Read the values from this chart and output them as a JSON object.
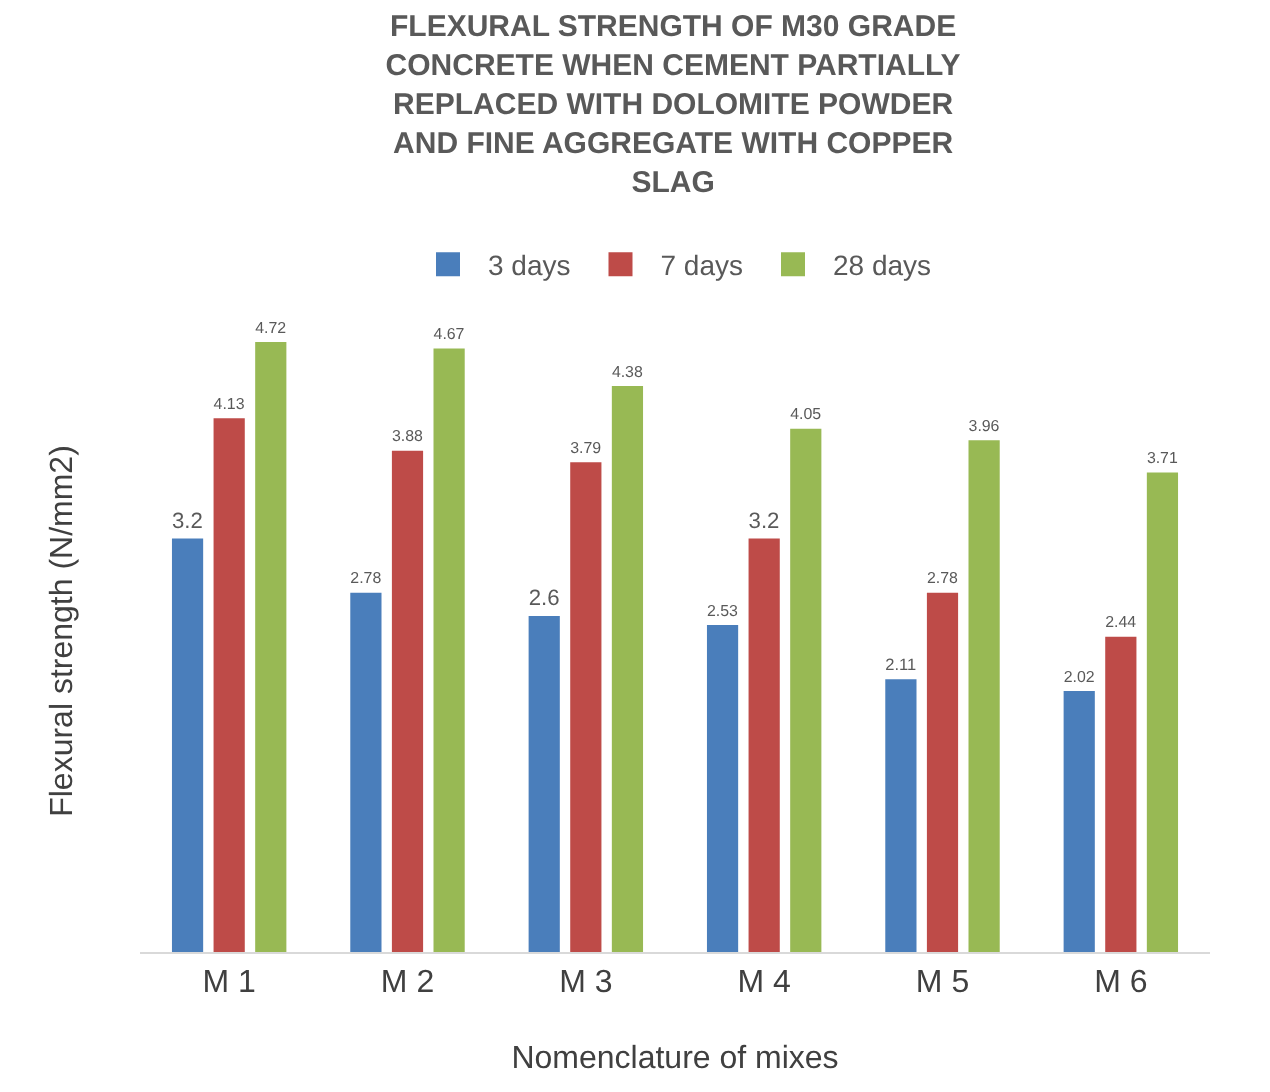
{
  "chart_data": {
    "type": "bar",
    "title": "FLEXURAL STRENGTH OF M30 GRADE CONCRETE WHEN CEMENT PARTIALLY REPLACED WITH DOLOMITE POWDER AND FINE AGGREGATE WITH COPPER SLAG",
    "xlabel": "Nomenclature of mixes",
    "ylabel": "Flexural strength (N/mm2)",
    "categories": [
      "M 1",
      "M 2",
      "M 3",
      "M 4",
      "M 5",
      "M 6"
    ],
    "series": [
      {
        "name": "3 days",
        "color": "#4a7ebb",
        "values": [
          3.2,
          2.78,
          2.6,
          2.53,
          2.11,
          2.02
        ]
      },
      {
        "name": "7 days",
        "color": "#be4b48",
        "values": [
          4.13,
          3.88,
          3.79,
          3.2,
          2.78,
          2.44
        ]
      },
      {
        "name": "28 days",
        "color": "#98b954",
        "values": [
          4.72,
          4.67,
          4.38,
          4.05,
          3.96,
          3.71
        ]
      }
    ],
    "data_labels": true,
    "legend": "top"
  }
}
